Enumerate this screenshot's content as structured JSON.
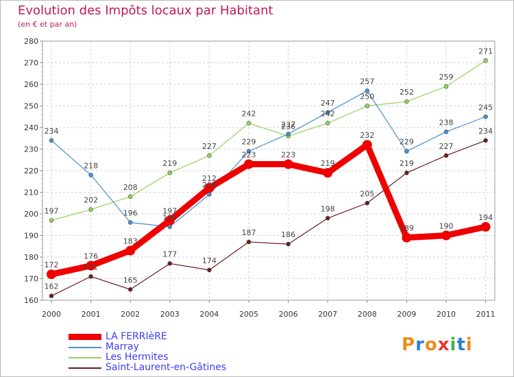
{
  "header": {
    "title": "Evolution des Impôts locaux par Habitant",
    "subtitle": "(en € et par an)"
  },
  "brand": {
    "letters": [
      "P",
      "r",
      "o",
      "x",
      "i",
      "t",
      "i"
    ],
    "colors": [
      "#f08a1c",
      "#2f7ed8",
      "#f08a1c",
      "#e23a2e",
      "#4bb04b",
      "#2f7ed8",
      "#f08a1c"
    ]
  },
  "chart_data": {
    "type": "line",
    "x": [
      "2000",
      "2001",
      "2002",
      "2003",
      "2004",
      "2005",
      "2006",
      "2007",
      "2008",
      "2009",
      "2010",
      "2011"
    ],
    "ylim": [
      160,
      280
    ],
    "yticks": [
      160,
      170,
      180,
      190,
      200,
      210,
      220,
      230,
      240,
      250,
      260,
      270,
      280
    ],
    "grid": true,
    "legend_position": "bottom-left",
    "series": [
      {
        "name": "Saint-Laurent-en-Gâtines",
        "color": "#6b1a1a",
        "width": 1.2,
        "values": [
          162,
          171,
          165,
          177,
          174,
          187,
          186,
          198,
          205,
          219,
          227,
          234
        ]
      },
      {
        "name": "Les Hermites",
        "color": "#8fd45a",
        "width": 1.2,
        "values": [
          197,
          202,
          208,
          219,
          227,
          242,
          236,
          242,
          250,
          252,
          259,
          271
        ]
      },
      {
        "name": "Marray",
        "color": "#4a8fcf",
        "width": 1.2,
        "values": [
          234,
          218,
          196,
          194,
          209,
          229,
          237,
          247,
          257,
          229,
          238,
          245
        ]
      },
      {
        "name": "LA FERRIèRE",
        "color": "#ee0000",
        "width": 9,
        "values": [
          172,
          176,
          183,
          197,
          212,
          223,
          223,
          219,
          232,
          189,
          190,
          194
        ]
      }
    ]
  }
}
